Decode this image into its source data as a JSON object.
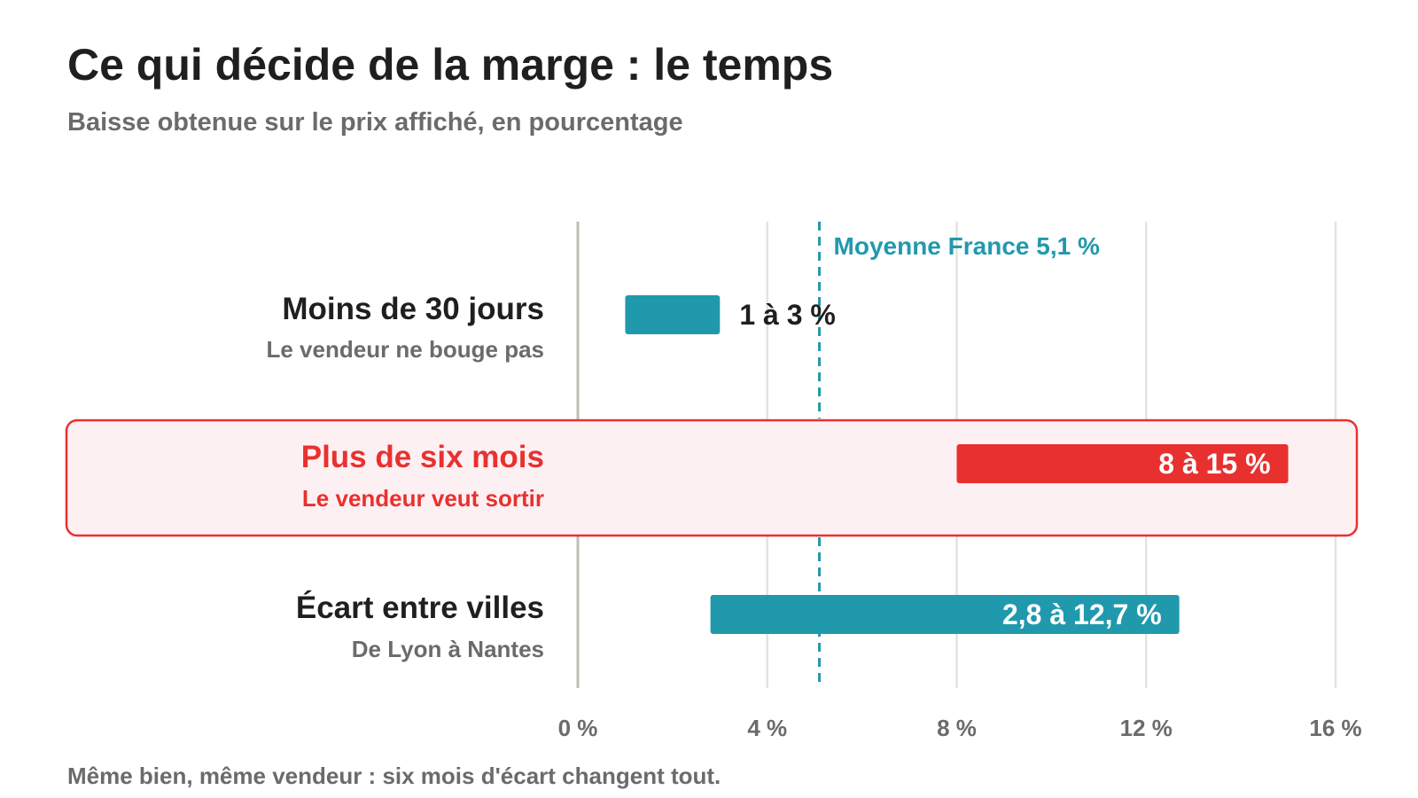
{
  "title": "Ce qui décide de la marge : le temps",
  "subtitle": "Baisse obtenue sur le prix affiché, en pourcentage",
  "footnote": "Même bien, même vendeur : six mois d'écart changent tout.",
  "colors": {
    "teal": "#2199ad",
    "red": "#e8312f",
    "highlight_bg": "#fdf0f3",
    "grid": "#e4e4dd",
    "axis": "#bdbdb6",
    "dark_text": "#1f1f1f",
    "grey_text": "#6b6b6b"
  },
  "chart_data": {
    "type": "bar",
    "orientation": "horizontal",
    "range_bars": true,
    "xlim": [
      0,
      16
    ],
    "x_ticks": [
      0,
      4,
      8,
      12,
      16
    ],
    "x_tick_labels": [
      "0 %",
      "4 %",
      "8 %",
      "12 %",
      "16 %"
    ],
    "grid": true,
    "reference_line": {
      "value": 5.1,
      "label": "Moyenne France 5,1 %",
      "style": "dashed"
    },
    "categories": [
      {
        "label": "Moins de 30 jours",
        "sublabel": "Le vendeur ne bouge pas",
        "start": 1,
        "end": 3,
        "value_label": "1 à 3 %",
        "color": "teal",
        "highlight": false
      },
      {
        "label": "Plus de six mois",
        "sublabel": "Le vendeur veut sortir",
        "start": 8,
        "end": 15,
        "value_label": "8 à 15 %",
        "color": "red",
        "highlight": true
      },
      {
        "label": "Écart entre villes",
        "sublabel": "De Lyon à Nantes",
        "start": 2.8,
        "end": 12.7,
        "value_label": "2,8 à 12,7 %",
        "color": "teal",
        "highlight": false
      }
    ]
  }
}
